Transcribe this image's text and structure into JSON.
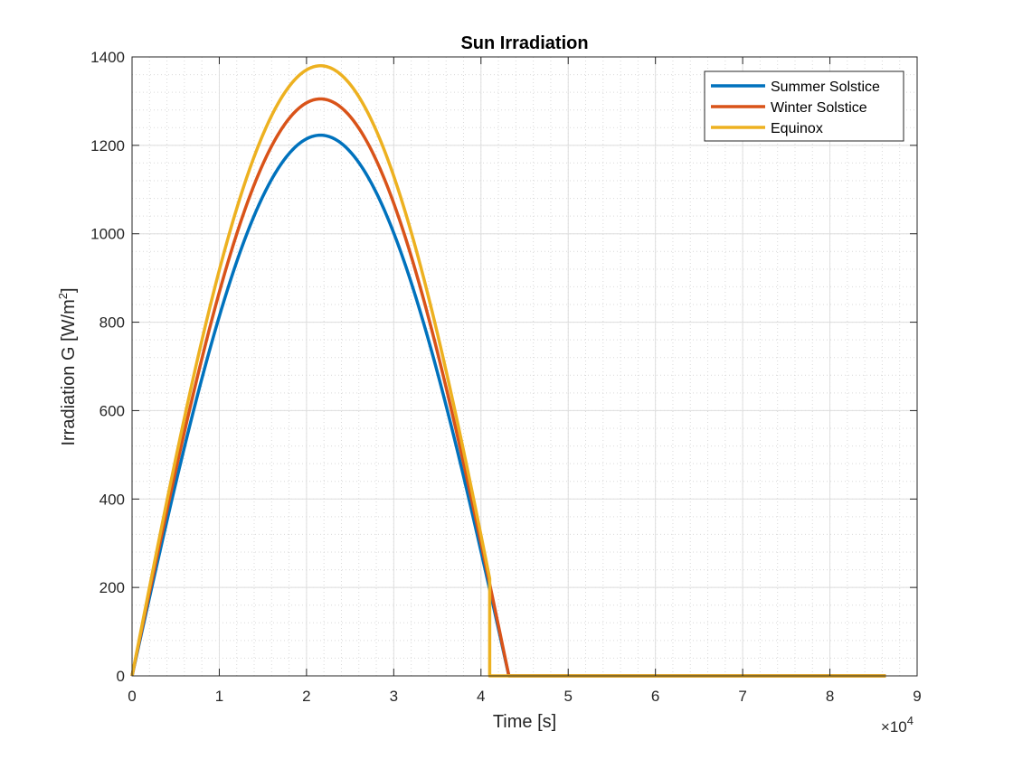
{
  "chart_data": {
    "type": "line",
    "title": "Sun Irradiation",
    "xlabel": "Time [s]",
    "ylabel_main": "Irradiation G [W/m",
    "ylabel_sup": "2",
    "ylabel_close": "]",
    "x_exponent_prefix": "×10",
    "x_exponent_power": "4",
    "xlim": [
      0,
      90000
    ],
    "ylim": [
      0,
      1400
    ],
    "x_ticks": [
      0,
      10000,
      20000,
      30000,
      40000,
      50000,
      60000,
      70000,
      80000,
      90000
    ],
    "x_tick_labels": [
      "0",
      "1",
      "2",
      "3",
      "4",
      "5",
      "6",
      "7",
      "8",
      "9"
    ],
    "y_ticks": [
      0,
      200,
      400,
      600,
      800,
      1000,
      1200,
      1400
    ],
    "y_tick_labels": [
      "0",
      "200",
      "400",
      "600",
      "800",
      "1000",
      "1200",
      "1400"
    ],
    "grid": true,
    "minor_grid": true,
    "legend_position": "top-right",
    "series": [
      {
        "name": "Summer Solstice",
        "color": "#0072BD",
        "peak": 1223,
        "end_of_curve": 43200,
        "cutoff": null,
        "domain_end": 86400
      },
      {
        "name": "Winter Solstice",
        "color": "#D95319",
        "peak": 1305,
        "end_of_curve": 43200,
        "cutoff": null,
        "domain_end": 86400
      },
      {
        "name": "Equinox",
        "color": "#EDB120",
        "peak": 1380,
        "end_of_curve": 43200,
        "cutoff": 41000,
        "domain_end": 86400
      }
    ]
  }
}
